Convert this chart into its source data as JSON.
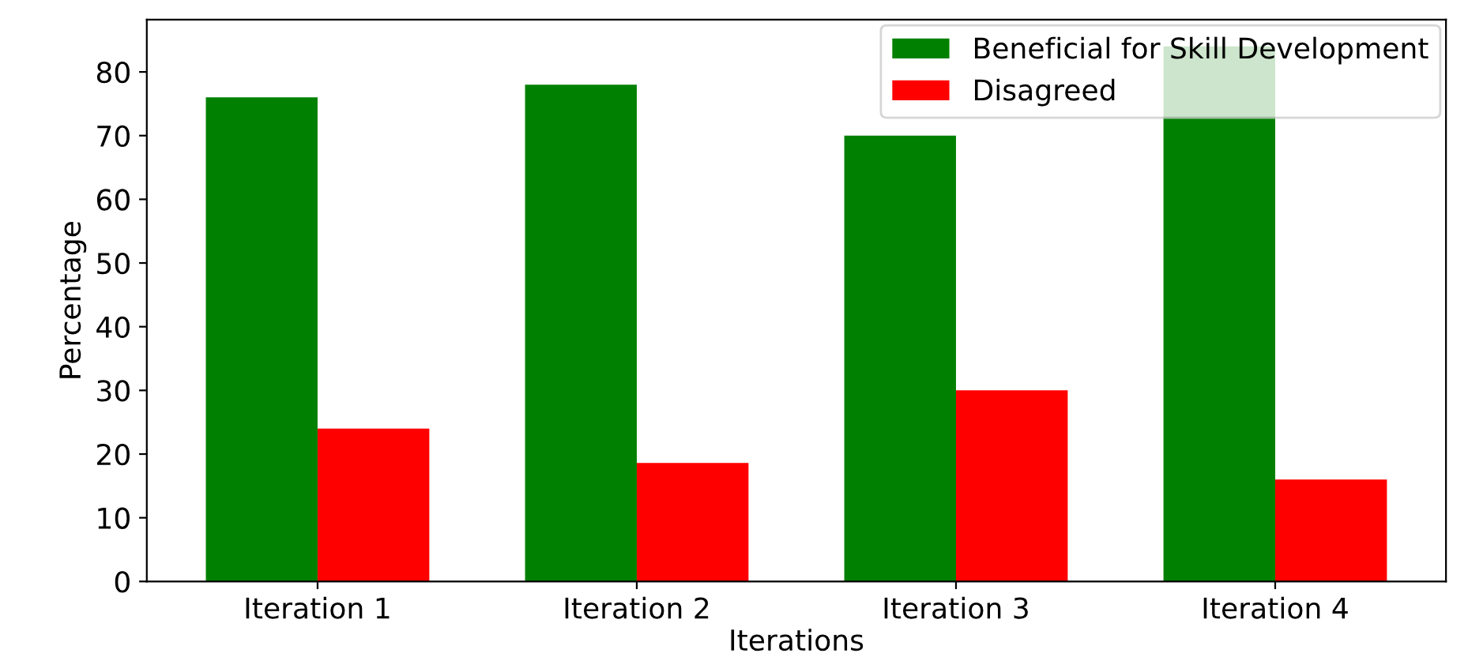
{
  "chart_data": {
    "type": "bar",
    "xlabel": "Iterations",
    "ylabel": "Percentage",
    "categories": [
      "Iteration 1",
      "Iteration 2",
      "Iteration 3",
      "Iteration 4"
    ],
    "series": [
      {
        "name": "Beneficial for Skill Development",
        "color": "#008000",
        "values": [
          76,
          78,
          70,
          84
        ]
      },
      {
        "name": "Disagreed",
        "color": "#ff0000",
        "values": [
          24,
          18.6,
          30,
          16
        ]
      }
    ],
    "ylim": [
      0,
      88.2
    ],
    "yticks": [
      0,
      10,
      20,
      30,
      40,
      50,
      60,
      70,
      80
    ],
    "grid": false,
    "legend": "top right"
  }
}
